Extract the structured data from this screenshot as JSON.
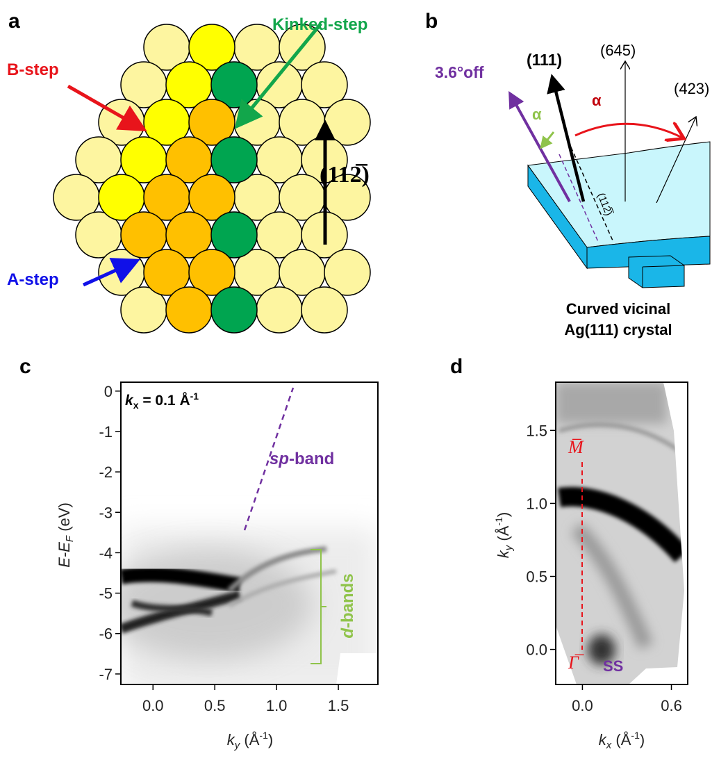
{
  "panel_a": {
    "label": "a",
    "kinked_step": "Kinked-step",
    "b_step": "B-step",
    "a_step": "A-step",
    "direction": "(112̅)"
  },
  "panel_b": {
    "label": "b",
    "off": "3.6°off",
    "n111": "(111)",
    "n645": "(645)",
    "n423": "(423)",
    "alpha_green": "α",
    "alpha_red": "α",
    "step_dir": "(112̅)",
    "caption": [
      "Curved vicinal",
      "Ag(111) crystal"
    ]
  },
  "chart_data": [
    {
      "type": "heatmap",
      "panel_label": "c",
      "xlim": [
        -0.26,
        1.82
      ],
      "ylim": [
        -7.26,
        0.22
      ],
      "xticks": [
        {
          "value": 0,
          "label": "0.0"
        },
        0.5,
        {
          "value": 1,
          "label": "1.0"
        },
        1.5
      ],
      "yticks": [
        0,
        -1,
        -2,
        -3,
        -4,
        -5,
        -6,
        -7
      ],
      "xlabel": [
        "k",
        "y",
        " (Å",
        "-1",
        ")"
      ],
      "ylabel": [
        "E-E",
        "F",
        " (eV)"
      ],
      "annotations": {
        "kx": [
          "k",
          "x",
          " = 0.1 Å",
          "-1"
        ],
        "sp_band": [
          "sp",
          "-band"
        ],
        "d_bands": [
          "d",
          "-bands"
        ]
      }
    },
    {
      "type": "heatmap",
      "panel_label": "d",
      "xlim": [
        -0.18,
        0.71
      ],
      "ylim": [
        -0.24,
        1.83
      ],
      "xticks": [
        {
          "value": 0,
          "label": "0.0"
        },
        0.6
      ],
      "yticks": [
        {
          "value": 0,
          "label": "0.0"
        },
        0.5,
        {
          "value": 1,
          "label": "1.0"
        },
        1.5
      ],
      "xlabel": [
        "k",
        "x",
        " (Å",
        "-1",
        ")"
      ],
      "ylabel": [
        "k",
        "y",
        " (Å",
        "-1",
        ")"
      ],
      "annotations": {
        "m_point": "M̅",
        "gamma_point": "Γ̅",
        "ss": "SS"
      }
    }
  ]
}
